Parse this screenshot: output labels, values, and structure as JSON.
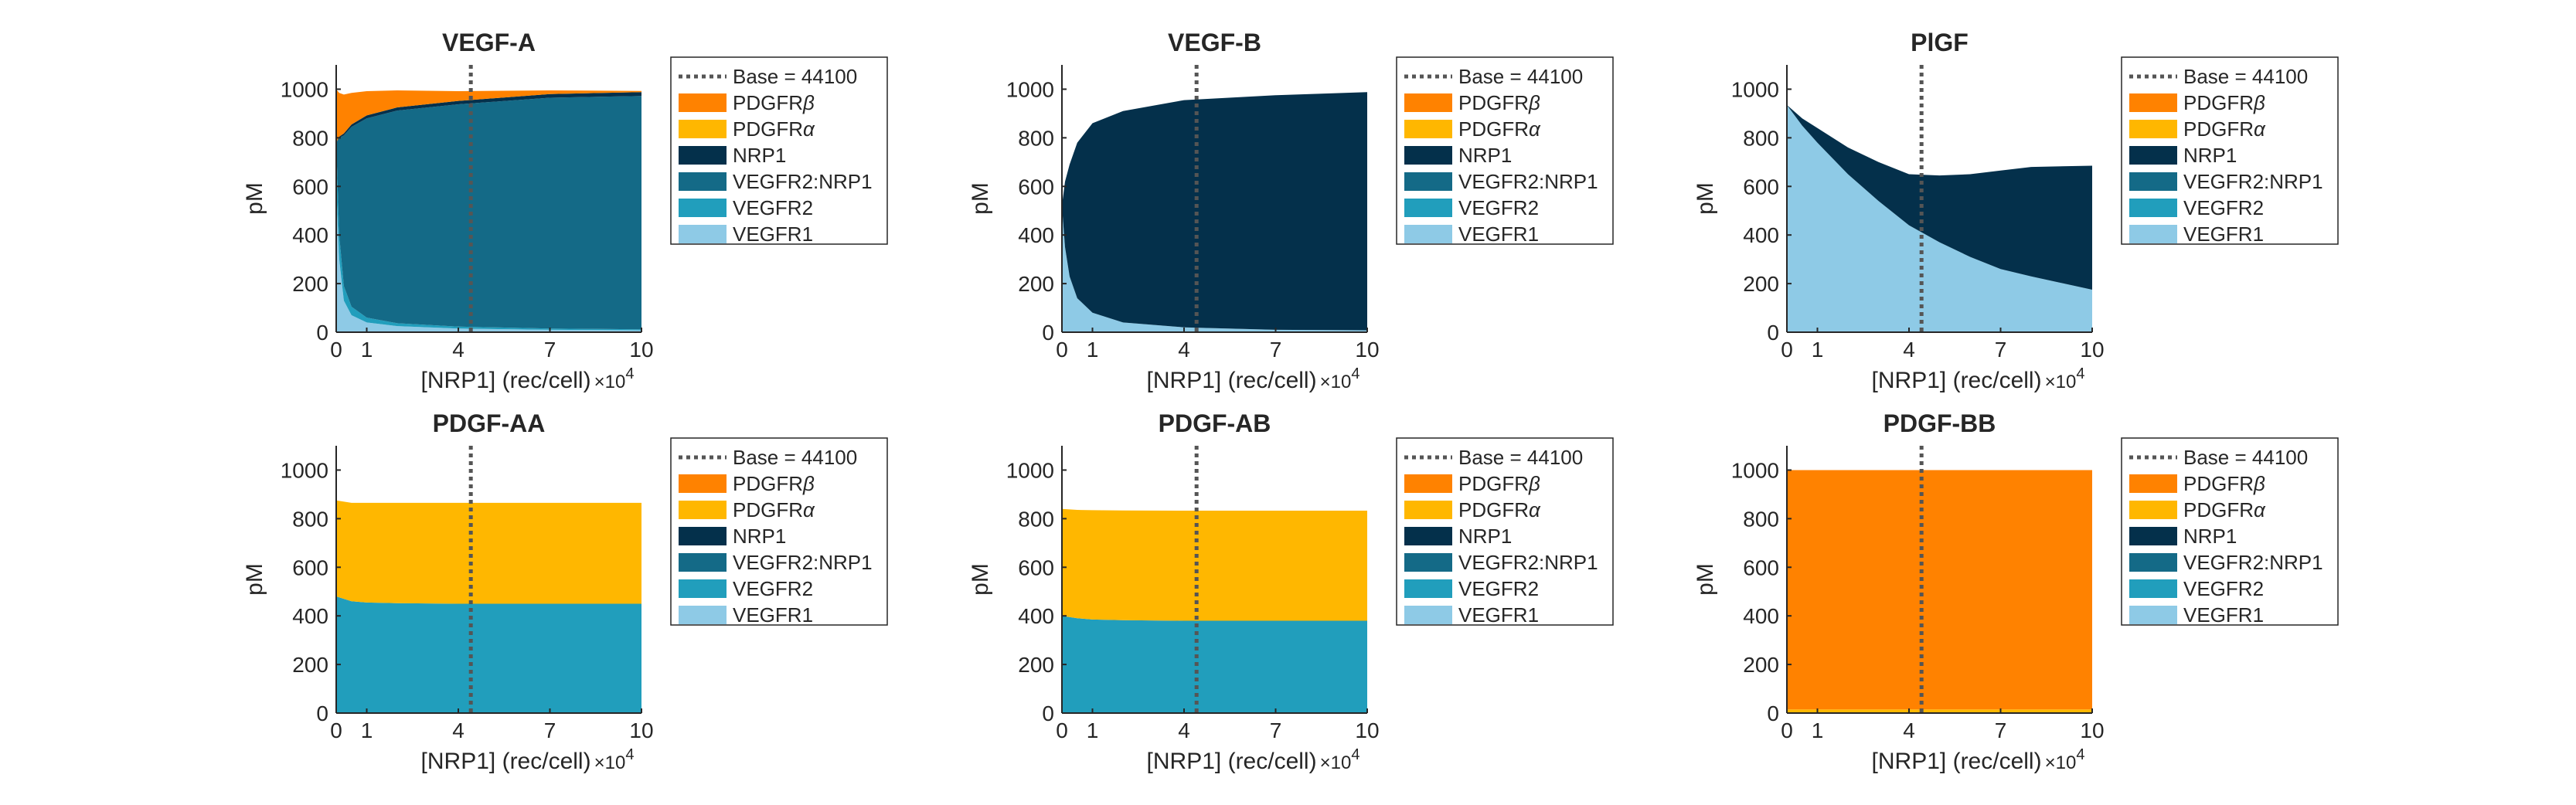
{
  "figure": {
    "xlabel_prefix": "[NRP1] (rec/cell)",
    "x_multiplier": "×10",
    "x_multiplier_exp": "4",
    "ylabel": "pM",
    "x_ticks": [
      "0",
      "1",
      "4",
      "7",
      "10"
    ],
    "y_ticks": [
      "0",
      "200",
      "400",
      "600",
      "800",
      "1000"
    ]
  },
  "legend": {
    "base_label": "Base = 44100",
    "entries": [
      {
        "key": "PDGFRb",
        "base": "PDGFR",
        "greek": "β",
        "color": "#FF8200"
      },
      {
        "key": "PDGFRa",
        "base": "PDGFR",
        "greek": "α",
        "color": "#FFB700"
      },
      {
        "key": "NRP1",
        "base": "NRP1",
        "greek": "",
        "color": "#04304B"
      },
      {
        "key": "VEGFR2NRP1",
        "base": "VEGFR2:NRP1",
        "greek": "",
        "color": "#146A87"
      },
      {
        "key": "VEGFR2",
        "base": "VEGFR2",
        "greek": "",
        "color": "#219EBC"
      },
      {
        "key": "VEGFR1",
        "base": "VEGFR1",
        "greek": "",
        "color": "#8ECAE6"
      }
    ]
  },
  "chart_data": [
    {
      "type": "area",
      "stacked": true,
      "title": "VEGF-A",
      "xlabel": "[NRP1] (rec/cell) ×10^4",
      "ylabel": "pM",
      "xlim": [
        0,
        10
      ],
      "ylim": [
        0,
        1100
      ],
      "base_line_x": 4.41,
      "legend_position": "right",
      "x": [
        0,
        0.1,
        0.25,
        0.5,
        1,
        2,
        4,
        7,
        10
      ],
      "series": [
        {
          "name": "VEGFR1",
          "values": [
            600,
            300,
            130,
            70,
            40,
            25,
            15,
            10,
            8
          ]
        },
        {
          "name": "VEGFR2",
          "values": [
            180,
            100,
            60,
            35,
            20,
            12,
            8,
            5,
            4
          ]
        },
        {
          "name": "VEGFR2:NRP1",
          "values": [
            0,
            400,
            620,
            740,
            820,
            875,
            915,
            950,
            960
          ]
        },
        {
          "name": "NRP1",
          "values": [
            0,
            5,
            8,
            10,
            12,
            13,
            14,
            15,
            16
          ]
        },
        {
          "name": "PDGFRα",
          "values": [
            0,
            0,
            0,
            0,
            0,
            0,
            0,
            0,
            0
          ]
        },
        {
          "name": "PDGFRβ",
          "values": [
            220,
            180,
            160,
            130,
            100,
            70,
            40,
            15,
            5
          ]
        }
      ]
    },
    {
      "type": "area",
      "stacked": true,
      "title": "VEGF-B",
      "xlabel": "[NRP1] (rec/cell) ×10^4",
      "ylabel": "pM",
      "xlim": [
        0,
        10
      ],
      "ylim": [
        0,
        1100
      ],
      "base_line_x": 4.41,
      "legend_position": "right",
      "x": [
        0,
        0.1,
        0.25,
        0.5,
        1,
        2,
        4,
        7,
        10
      ],
      "series": [
        {
          "name": "VEGFR1",
          "values": [
            520,
            350,
            230,
            140,
            80,
            40,
            20,
            10,
            8
          ]
        },
        {
          "name": "VEGFR2",
          "values": [
            0,
            0,
            0,
            0,
            0,
            0,
            0,
            0,
            0
          ]
        },
        {
          "name": "VEGFR2:NRP1",
          "values": [
            0,
            0,
            0,
            0,
            0,
            0,
            0,
            0,
            0
          ]
        },
        {
          "name": "NRP1",
          "values": [
            0,
            270,
            460,
            640,
            780,
            870,
            935,
            965,
            980
          ]
        },
        {
          "name": "PDGFRα",
          "values": [
            0,
            0,
            0,
            0,
            0,
            0,
            0,
            0,
            0
          ]
        },
        {
          "name": "PDGFRβ",
          "values": [
            0,
            0,
            0,
            0,
            0,
            0,
            0,
            0,
            0
          ]
        }
      ]
    },
    {
      "type": "area",
      "stacked": true,
      "title": "PlGF",
      "xlabel": "[NRP1] (rec/cell) ×10^4",
      "ylabel": "pM",
      "xlim": [
        0,
        10
      ],
      "ylim": [
        0,
        1100
      ],
      "base_line_x": 4.41,
      "legend_position": "right",
      "x": [
        0,
        0.5,
        1,
        2,
        3,
        4,
        5,
        6,
        7,
        8,
        10
      ],
      "series": [
        {
          "name": "VEGFR1",
          "values": [
            935,
            850,
            780,
            650,
            540,
            440,
            370,
            310,
            260,
            230,
            175
          ]
        },
        {
          "name": "VEGFR2",
          "values": [
            0,
            0,
            0,
            0,
            0,
            0,
            0,
            0,
            0,
            0,
            0
          ]
        },
        {
          "name": "VEGFR2:NRP1",
          "values": [
            0,
            0,
            0,
            0,
            0,
            0,
            0,
            0,
            0,
            0,
            0
          ]
        },
        {
          "name": "NRP1",
          "values": [
            0,
            30,
            60,
            110,
            160,
            210,
            275,
            340,
            405,
            450,
            510
          ]
        },
        {
          "name": "PDGFRα",
          "values": [
            0,
            0,
            0,
            0,
            0,
            0,
            0,
            0,
            0,
            0,
            0
          ]
        },
        {
          "name": "PDGFRβ",
          "values": [
            0,
            0,
            0,
            0,
            0,
            0,
            0,
            0,
            0,
            0,
            0
          ]
        }
      ]
    },
    {
      "type": "area",
      "stacked": true,
      "title": "PDGF-AA",
      "xlabel": "[NRP1] (rec/cell) ×10^4",
      "ylabel": "pM",
      "xlim": [
        0,
        10
      ],
      "ylim": [
        0,
        1100
      ],
      "base_line_x": 4.41,
      "legend_position": "right",
      "x": [
        0,
        0.5,
        1,
        2,
        4,
        7,
        10
      ],
      "series": [
        {
          "name": "VEGFR1",
          "values": [
            0,
            0,
            0,
            0,
            0,
            0,
            0
          ]
        },
        {
          "name": "VEGFR2",
          "values": [
            480,
            460,
            455,
            452,
            450,
            450,
            450
          ]
        },
        {
          "name": "VEGFR2:NRP1",
          "values": [
            0,
            0,
            0,
            0,
            0,
            0,
            0
          ]
        },
        {
          "name": "NRP1",
          "values": [
            0,
            0,
            0,
            0,
            0,
            0,
            0
          ]
        },
        {
          "name": "PDGFRα",
          "values": [
            395,
            405,
            410,
            413,
            415,
            415,
            415
          ]
        },
        {
          "name": "PDGFRβ",
          "values": [
            0,
            0,
            0,
            0,
            0,
            0,
            0
          ]
        }
      ]
    },
    {
      "type": "area",
      "stacked": true,
      "title": "PDGF-AB",
      "xlabel": "[NRP1] (rec/cell) ×10^4",
      "ylabel": "pM",
      "xlim": [
        0,
        10
      ],
      "ylim": [
        0,
        1100
      ],
      "base_line_x": 4.41,
      "legend_position": "right",
      "x": [
        0,
        0.5,
        1,
        2,
        4,
        7,
        10
      ],
      "series": [
        {
          "name": "VEGFR1",
          "values": [
            0,
            0,
            0,
            0,
            0,
            0,
            0
          ]
        },
        {
          "name": "VEGFR2",
          "values": [
            400,
            390,
            385,
            382,
            380,
            380,
            380
          ]
        },
        {
          "name": "VEGFR2:NRP1",
          "values": [
            0,
            0,
            0,
            0,
            0,
            0,
            0
          ]
        },
        {
          "name": "NRP1",
          "values": [
            0,
            0,
            0,
            0,
            0,
            0,
            0
          ]
        },
        {
          "name": "PDGFRα",
          "values": [
            440,
            446,
            450,
            452,
            453,
            453,
            453
          ]
        },
        {
          "name": "PDGFRβ",
          "values": [
            0,
            0,
            0,
            0,
            0,
            0,
            0
          ]
        }
      ]
    },
    {
      "type": "area",
      "stacked": true,
      "title": "PDGF-BB",
      "xlabel": "[NRP1] (rec/cell) ×10^4",
      "ylabel": "pM",
      "xlim": [
        0,
        10
      ],
      "ylim": [
        0,
        1100
      ],
      "base_line_x": 4.41,
      "legend_position": "right",
      "x": [
        0,
        10
      ],
      "series": [
        {
          "name": "VEGFR1",
          "values": [
            0,
            0
          ]
        },
        {
          "name": "VEGFR2",
          "values": [
            0,
            0
          ]
        },
        {
          "name": "VEGFR2:NRP1",
          "values": [
            0,
            0
          ]
        },
        {
          "name": "NRP1",
          "values": [
            0,
            0
          ]
        },
        {
          "name": "PDGFRα",
          "values": [
            15,
            15
          ]
        },
        {
          "name": "PDGFRβ",
          "values": [
            985,
            985
          ]
        }
      ]
    }
  ]
}
